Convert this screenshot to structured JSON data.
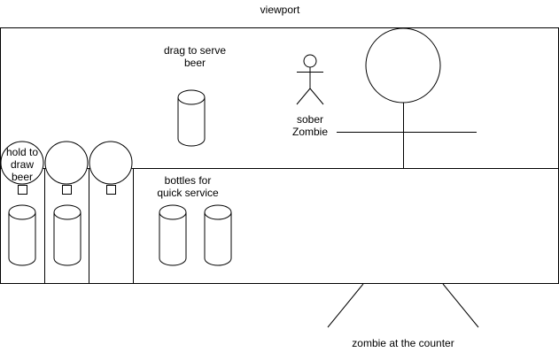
{
  "labels": {
    "viewport": "viewport",
    "drag_to_serve": [
      "drag to serve",
      "beer"
    ],
    "sober_zombie": [
      "sober",
      "Zombie"
    ],
    "hold_to_draw": [
      "hold to",
      "draw",
      "beer"
    ],
    "bottles": [
      "bottles for",
      "quick service"
    ],
    "zombie_counter": "zombie at the counter"
  },
  "colors": {
    "stroke": "#000000",
    "fill": "#ffffff"
  }
}
